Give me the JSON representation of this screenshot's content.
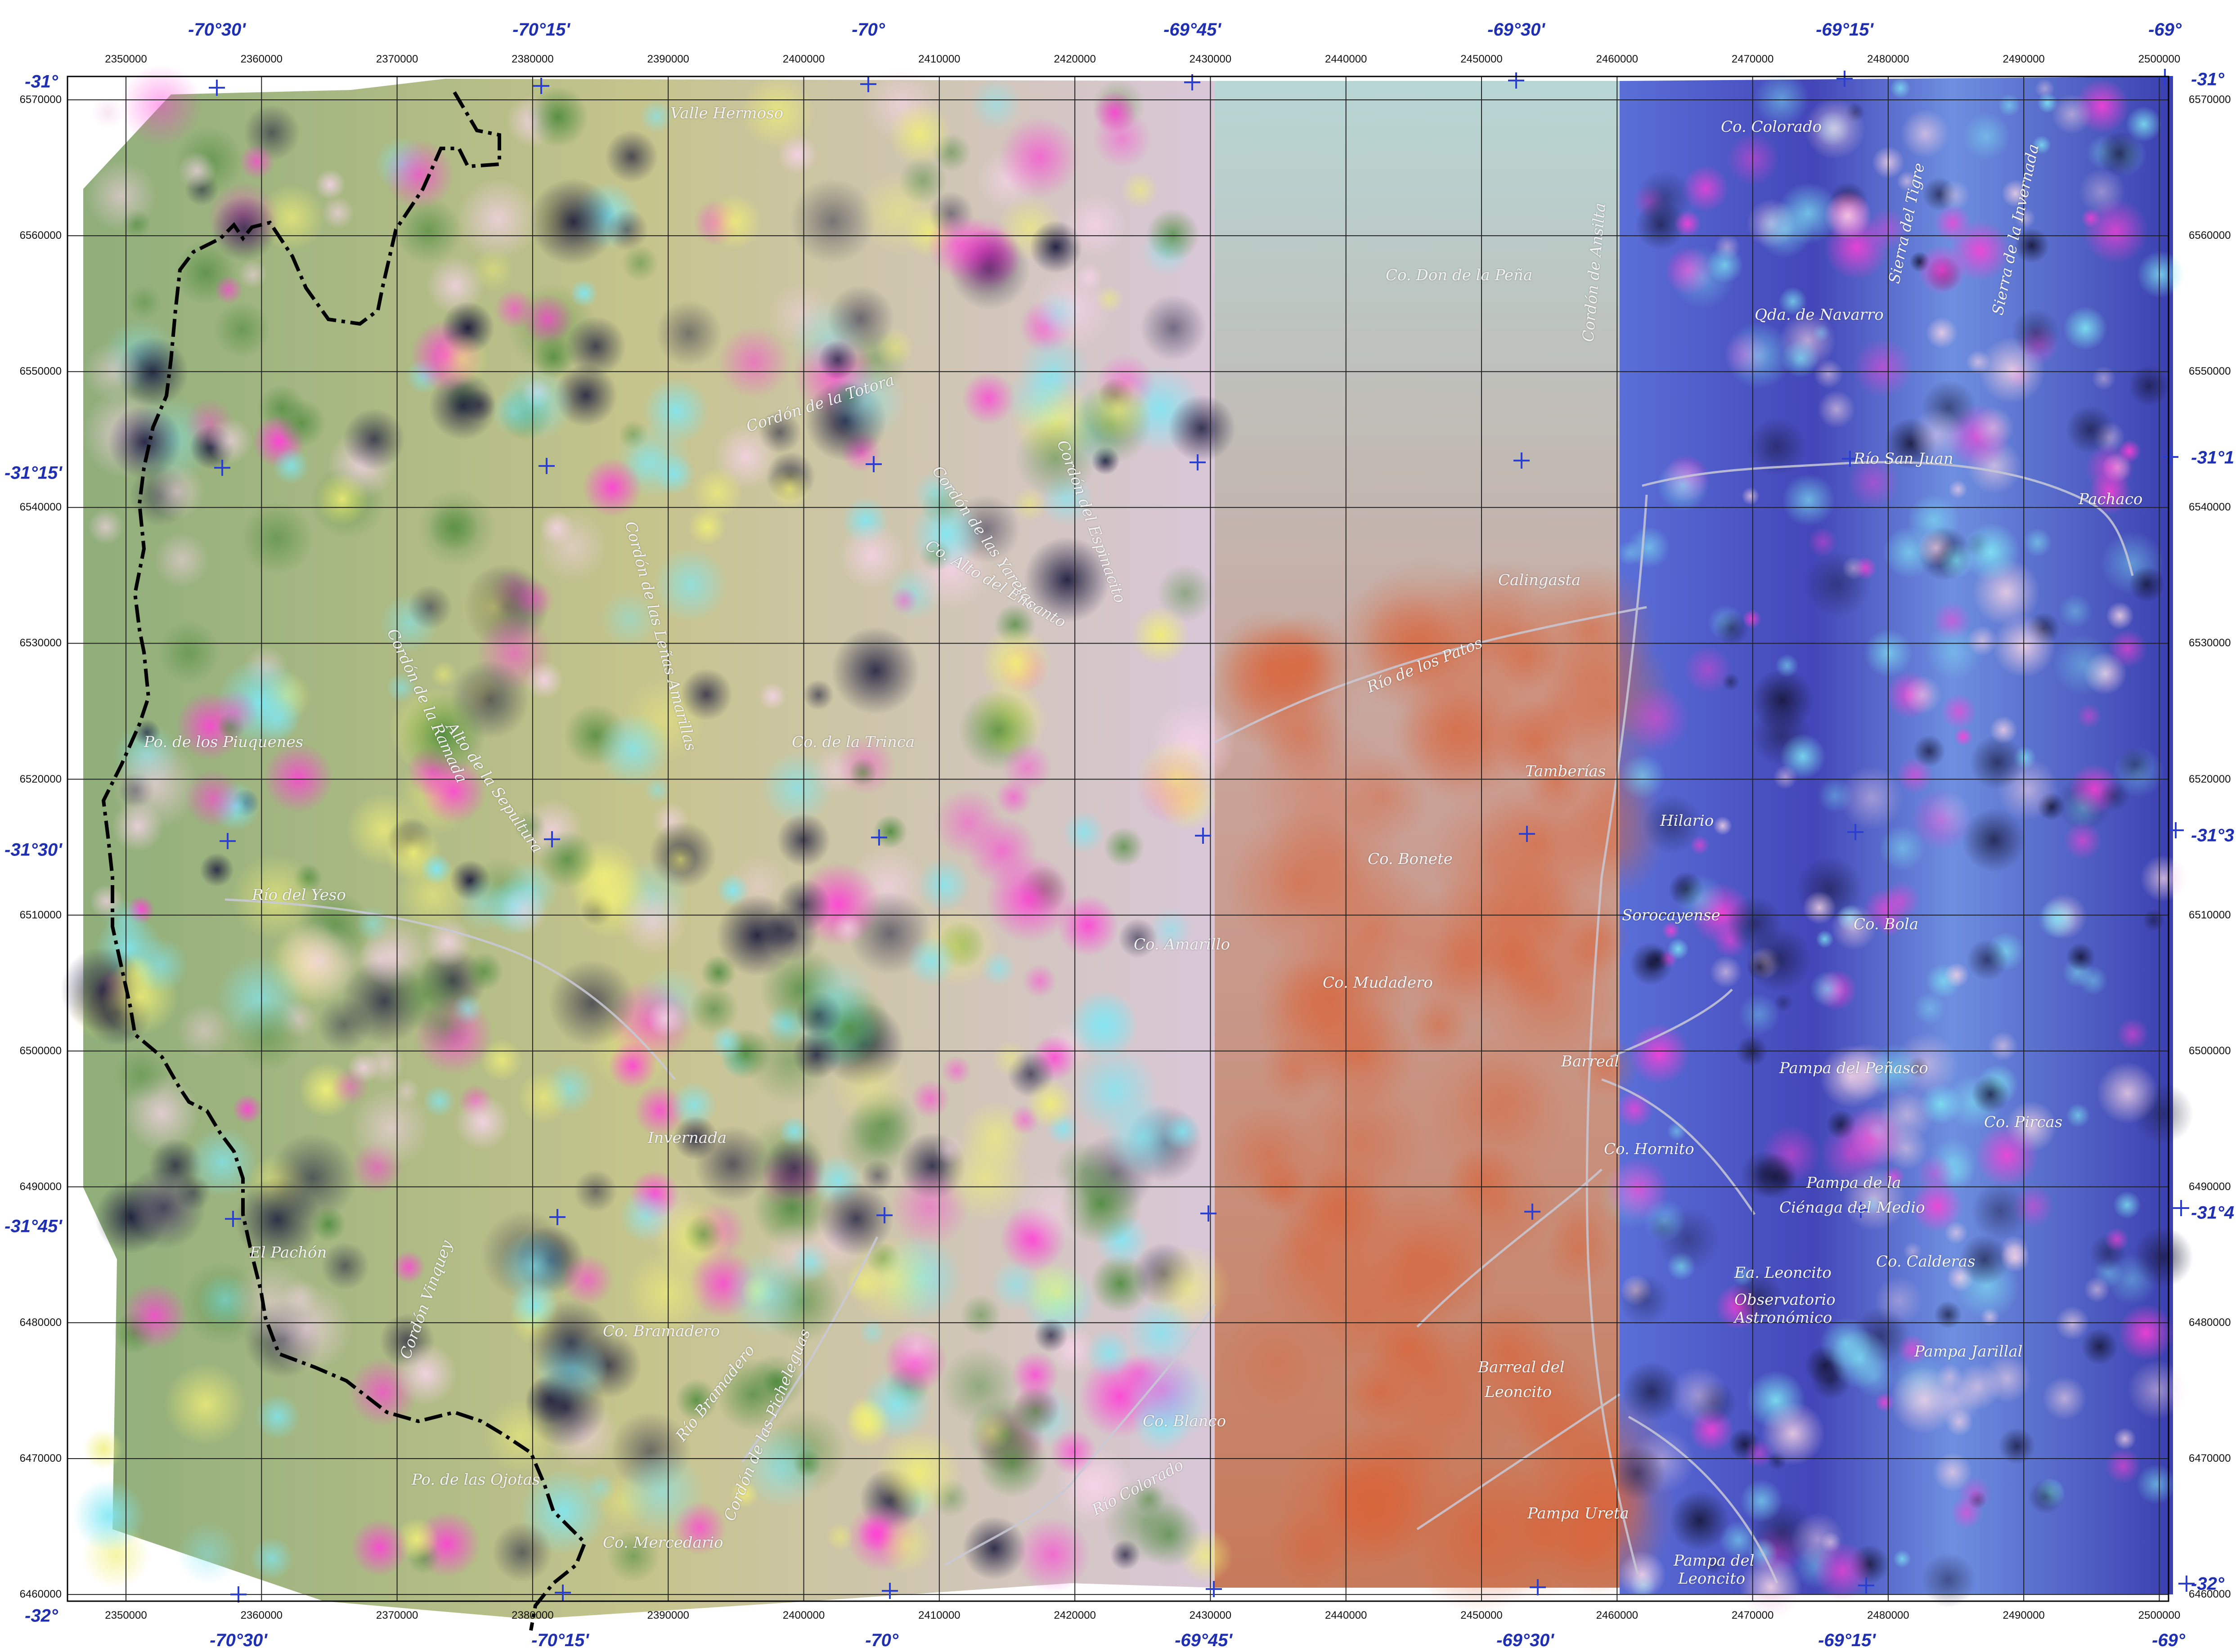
{
  "longitude_labels": [
    "-70°30'",
    "-70°15'",
    "-70°",
    "-69°45'",
    "-69°30'",
    "-69°15'",
    "-69°"
  ],
  "latitude_labels": [
    "-31°",
    "-31°15'",
    "-31°30'",
    "-31°45'",
    "-32°"
  ],
  "latitude_labels_right": [
    "-31°",
    "-31°1",
    "-31°3",
    "-31°4",
    "-32°"
  ],
  "easting_labels": [
    "2350000",
    "2360000",
    "2370000",
    "2380000",
    "2390000",
    "2400000",
    "2410000",
    "2420000",
    "2430000",
    "2440000",
    "2450000",
    "2460000",
    "2470000",
    "2480000",
    "2490000",
    "2500000"
  ],
  "northing_labels": [
    "6570000",
    "6560000",
    "6550000",
    "6540000",
    "6530000",
    "6520000",
    "6510000",
    "6500000",
    "6490000",
    "6480000",
    "6470000",
    "6460000"
  ],
  "place_names": [
    "Valle Hermoso",
    "Co. Colorado",
    "Sierra del Tigre",
    "Sierra de la Invernada",
    "Qda. de Navarro",
    "Co. Don de la Peña",
    "Cordón de Ansilta",
    "Río San Juan",
    "Pachaco",
    "Calingasta",
    "Río de los Patos",
    "Co. Bonete",
    "Cordón de la Totora",
    "Cordón del Espinacito",
    "Cordón de las Yaretas",
    "Co. Alto del Encanto",
    "Cordón de las Leñas Amarillas",
    "Co. de la Trinca",
    "Po. de los Piuquenes",
    "Tamberías",
    "Hilario",
    "Río del Yeso",
    "Cordón de la Ramada",
    "Alto de la Sepultura",
    "Co. Amarillo",
    "Co. Mudadero",
    "Co. Bola",
    "Sorocayense",
    "Barreal",
    "Pampa del Peñasco",
    "Co. Hornito",
    "Co. Pircas",
    "Pampa de la",
    "Ciénaga del Medio",
    "Co. Calderas",
    "Ea. Leoncito",
    "Observatorio",
    "Astronómico",
    "Invernada",
    "El Pachón",
    "Cordón Vinquey",
    "Co. Bramadero",
    "Río Bramadero",
    "Cordón de las Picheleguas",
    "Barreal del",
    "Leoncito",
    "Pampa Jarillal",
    "Co. Blanco",
    "Río Colorado",
    "Po. de las Ojotas",
    "Co. Mercedario",
    "Pampa Ureta",
    "Pampa del",
    "Leoncito"
  ],
  "colors": {
    "graticule_text": "#1f2fb3",
    "grid_line": "#222222",
    "boundary": "#000000",
    "place_text": "#f2f2f2"
  }
}
